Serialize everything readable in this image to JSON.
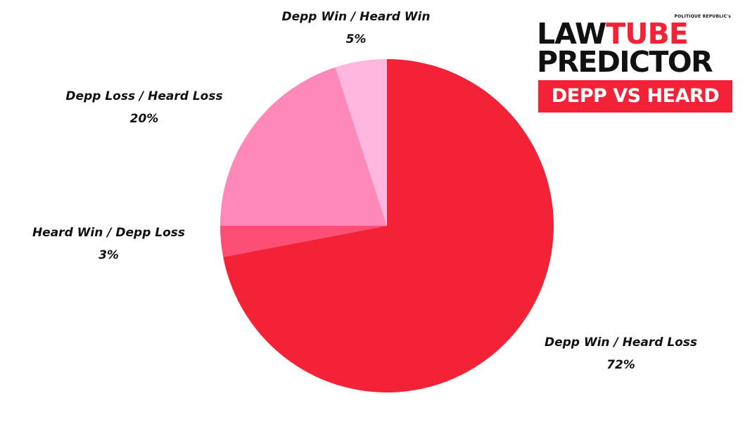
{
  "chart_data": {
    "type": "pie",
    "slices": [
      {
        "label": "Depp Win / Heard Loss",
        "value": 72,
        "value_label": "72%",
        "color": "#f42237"
      },
      {
        "label": "Heard Win / Depp Loss",
        "value": 3,
        "value_label": "3%",
        "color": "#fd4f76"
      },
      {
        "label": "Depp Loss / Heard Loss",
        "value": 20,
        "value_label": "20%",
        "color": "#fe89b8"
      },
      {
        "label": "Depp Win / Heard Win",
        "value": 5,
        "value_label": "5%",
        "color": "#ffb7e0"
      }
    ],
    "start": "top (12 o'clock)",
    "direction": "clockwise",
    "legend": "none",
    "labels": "outside"
  },
  "logo": {
    "kicker": "POLITIQUE REPUBLIC's",
    "line1_a": "LAW",
    "line1_b": "TUBE",
    "line2": "PREDICTOR",
    "banner": "DEPP VS HEARD",
    "brand_color": "#f42237"
  }
}
